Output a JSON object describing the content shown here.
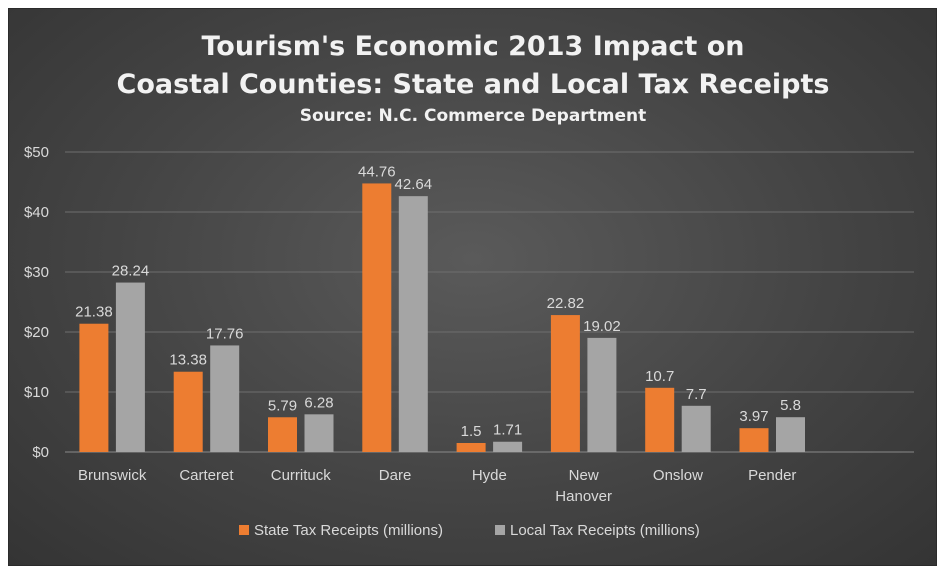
{
  "chart_data": {
    "type": "bar",
    "title_line1": "Tourism's Economic 2013 Impact on",
    "title_line2": "Coastal Counties: State and Local Tax Receipts",
    "subtitle": "Source: N.C. Commerce Department",
    "categories": [
      [
        "Brunswick"
      ],
      [
        "Carteret"
      ],
      [
        "Currituck"
      ],
      [
        "Dare"
      ],
      [
        "Hyde"
      ],
      [
        "New",
        "Hanover"
      ],
      [
        "Onslow"
      ],
      [
        "Pender"
      ]
    ],
    "series": [
      {
        "name": "State Tax Receipts (millions)",
        "values": [
          21.38,
          13.38,
          5.79,
          44.76,
          1.5,
          22.82,
          10.7,
          3.97
        ],
        "labels": [
          "21.38",
          "13.38",
          "5.79",
          "44.76",
          "1.5",
          "22.82",
          "10.7",
          "3.97"
        ],
        "color": "#ed7d31"
      },
      {
        "name": "Local Tax Receipts (millions)",
        "values": [
          28.24,
          17.76,
          6.28,
          42.64,
          1.71,
          19.02,
          7.7,
          5.8
        ],
        "labels": [
          "28.24",
          "17.76",
          "6.28",
          "42.64",
          "1.71",
          "19.02",
          "7.7",
          "5.8"
        ],
        "color": "#a5a5a5"
      }
    ],
    "y_ticks": [
      {
        "value": 0,
        "label": "$0"
      },
      {
        "value": 10,
        "label": "$10"
      },
      {
        "value": 20,
        "label": "$20"
      },
      {
        "value": 30,
        "label": "$30"
      },
      {
        "value": 40,
        "label": "$40"
      },
      {
        "value": 50,
        "label": "$50"
      }
    ],
    "ylim": [
      0,
      50
    ],
    "grid": true,
    "legend_position": "bottom",
    "colors": {
      "gridline": "#6e6e6e",
      "axis": "#8a8a8a"
    }
  }
}
